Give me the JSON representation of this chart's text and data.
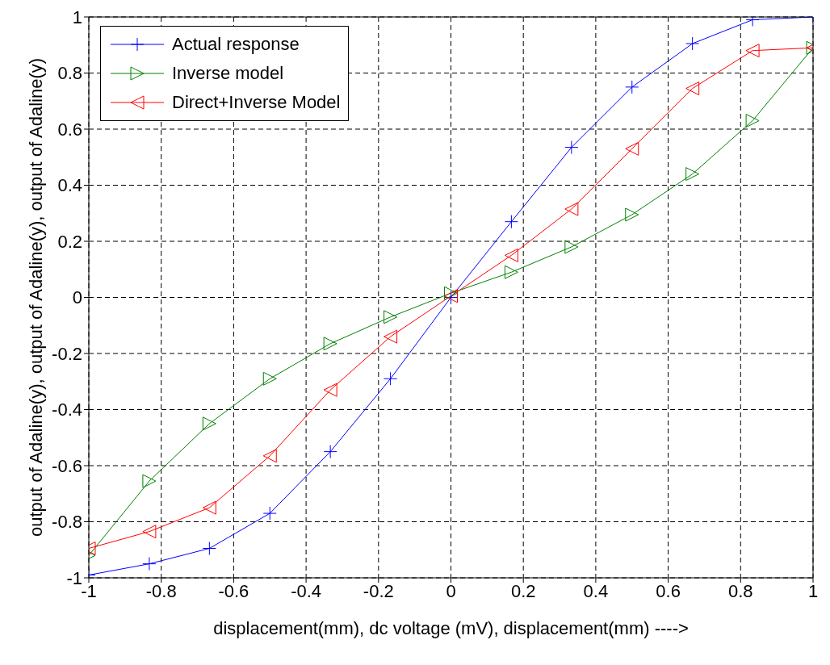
{
  "chart_data": {
    "type": "line",
    "xlabel": "displacement(mm), dc voltage (mV), displacement(mm) ---->",
    "ylabel": "output of Adaline(y), output of Adaline(y), output of Adaline(y)",
    "x": [
      -1,
      -0.833,
      -0.667,
      -0.5,
      -0.333,
      -0.167,
      0,
      0.167,
      0.333,
      0.5,
      0.667,
      0.833,
      1
    ],
    "series": [
      {
        "name": "Actual response",
        "color": "#0000ff",
        "marker": "cross",
        "values": [
          -0.99,
          -0.95,
          -0.895,
          -0.77,
          -0.55,
          -0.29,
          0,
          0.27,
          0.535,
          0.75,
          0.905,
          0.99,
          1.0
        ]
      },
      {
        "name": "Inverse model",
        "color": "#008000",
        "marker": "triangle-right",
        "values": [
          -0.92,
          -0.655,
          -0.45,
          -0.29,
          -0.165,
          -0.07,
          0.015,
          0.09,
          0.18,
          0.295,
          0.44,
          0.63,
          0.89
        ]
      },
      {
        "name": "Direct+Inverse Model",
        "color": "#ff0000",
        "marker": "triangle-left",
        "values": [
          -0.895,
          -0.835,
          -0.75,
          -0.565,
          -0.33,
          -0.14,
          0.005,
          0.15,
          0.315,
          0.53,
          0.745,
          0.88,
          0.89
        ]
      }
    ],
    "xlim": [
      -1,
      1
    ],
    "xticks": [
      -1,
      -0.8,
      -0.6,
      -0.4,
      -0.2,
      0,
      0.2,
      0.4,
      0.6,
      0.8,
      1
    ],
    "ylim": [
      -1,
      1
    ],
    "yticks": [
      -1,
      -0.8,
      -0.6,
      -0.4,
      -0.2,
      0,
      0.2,
      0.4,
      0.6,
      0.8,
      1
    ],
    "grid": true,
    "legend": "top left",
    "line_style": "solid"
  }
}
